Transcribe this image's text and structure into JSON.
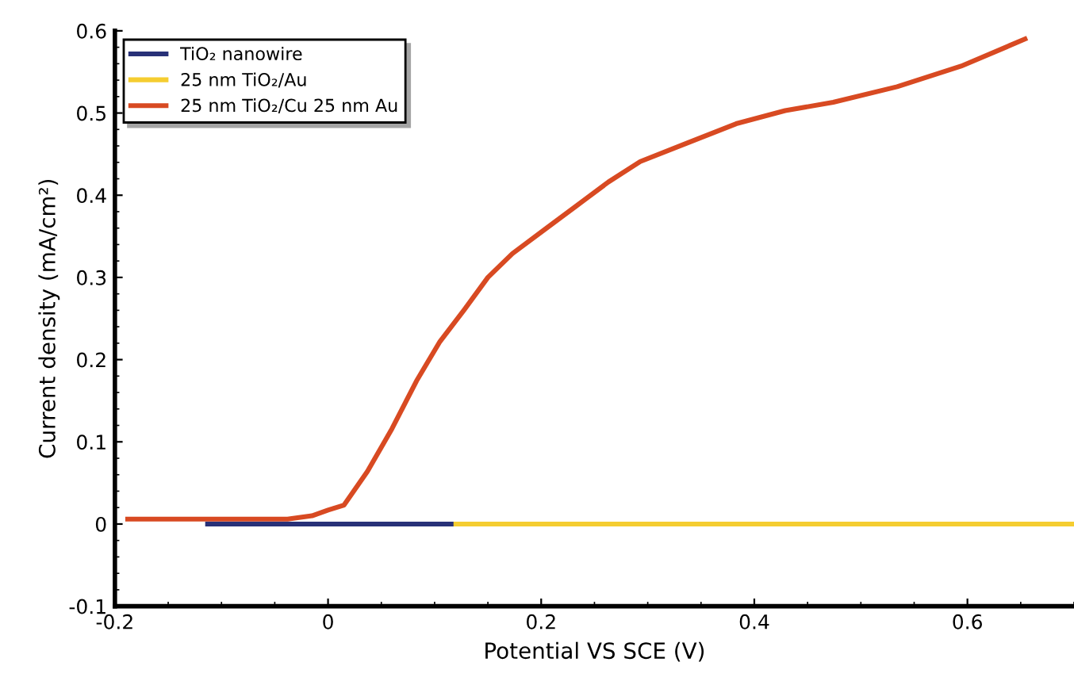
{
  "chart_data": {
    "type": "line",
    "xlabel": "Potential VS SCE (V)",
    "ylabel": "Current density (mA/cm²)",
    "xlim": [
      -0.2,
      0.7
    ],
    "xticks": [
      -0.2,
      0,
      0.2,
      0.4,
      0.6
    ],
    "ylim": [
      -0.1,
      0.6
    ],
    "yticks": [
      -0.1,
      0,
      0.1,
      0.2,
      0.3,
      0.4,
      0.5,
      0.6
    ],
    "grid": false,
    "legend": "top left",
    "marker": "none",
    "line_style": "solid",
    "series": [
      {
        "name": "TiO₂ nanowire",
        "color": "#283178",
        "x": [
          -0.113,
          0.12
        ],
        "values": [
          0,
          0
        ]
      },
      {
        "name": "25 nm TiO₂/Au",
        "color": "#f5cd30",
        "x": [
          0.12,
          0.7
        ],
        "values": [
          0,
          0
        ]
      },
      {
        "name": "25 nm TiO₂/Cu 25 nm Au",
        "color": "#d84a22",
        "x": [
          -0.188,
          -0.038,
          -0.015,
          0,
          0.015,
          0.037,
          0.06,
          0.083,
          0.105,
          0.128,
          0.15,
          0.173,
          0.203,
          0.233,
          0.263,
          0.293,
          0.338,
          0.383,
          0.429,
          0.474,
          0.534,
          0.594,
          0.654
        ],
        "values": [
          0.006,
          0.006,
          0.01,
          0.017,
          0.023,
          0.064,
          0.116,
          0.174,
          0.222,
          0.261,
          0.3,
          0.329,
          0.358,
          0.387,
          0.416,
          0.441,
          0.464,
          0.487,
          0.503,
          0.513,
          0.532,
          0.557,
          0.59
        ]
      }
    ]
  }
}
